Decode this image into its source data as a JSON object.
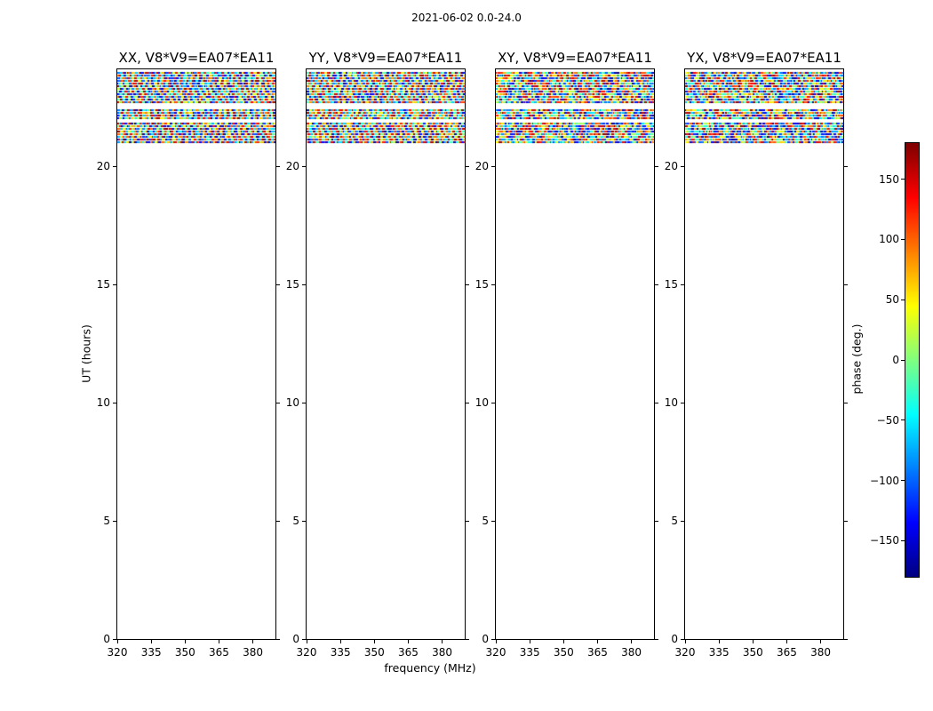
{
  "chart_data": {
    "type": "heatmap",
    "title": "2021-06-02 0.0-24.0",
    "xlabel": "frequency (MHz)",
    "ylabel": "UT (hours)",
    "panels": [
      {
        "title": "XX, V8*V9=EA07*EA11"
      },
      {
        "title": "YY, V8*V9=EA07*EA11"
      },
      {
        "title": "XY, V8*V9=EA07*EA11"
      },
      {
        "title": "YX, V8*V9=EA07*EA11"
      }
    ],
    "xlim": [
      320,
      390
    ],
    "ylim": [
      0,
      24.1
    ],
    "xticks": [
      320,
      335,
      350,
      365,
      380
    ],
    "xtick_labels": [
      "320",
      "335",
      "350",
      "365",
      "380"
    ],
    "yticks": [
      0,
      5,
      10,
      15,
      20
    ],
    "ytick_labels": [
      "0",
      "5",
      "10",
      "15",
      "20"
    ],
    "grid": false,
    "colorbar": {
      "label": "phase (deg.)",
      "min": -180,
      "max": 180,
      "ticks": [
        150,
        100,
        50,
        0,
        -50,
        -100,
        -150
      ],
      "tick_labels": [
        "150",
        "100",
        "50",
        "0",
        "−50",
        "−100",
        "−150"
      ],
      "colormap": "jet"
    },
    "noise_bands": [
      {
        "ut_start": 22.7,
        "ut_end": 24.0,
        "content": "random interferometer phase noise across all frequencies"
      },
      {
        "ut_start": 21.95,
        "ut_end": 22.4,
        "content": "random interferometer phase noise across all frequencies"
      },
      {
        "ut_start": 21.0,
        "ut_end": 21.85,
        "content": "random interferometer phase noise across all frequencies"
      }
    ]
  }
}
